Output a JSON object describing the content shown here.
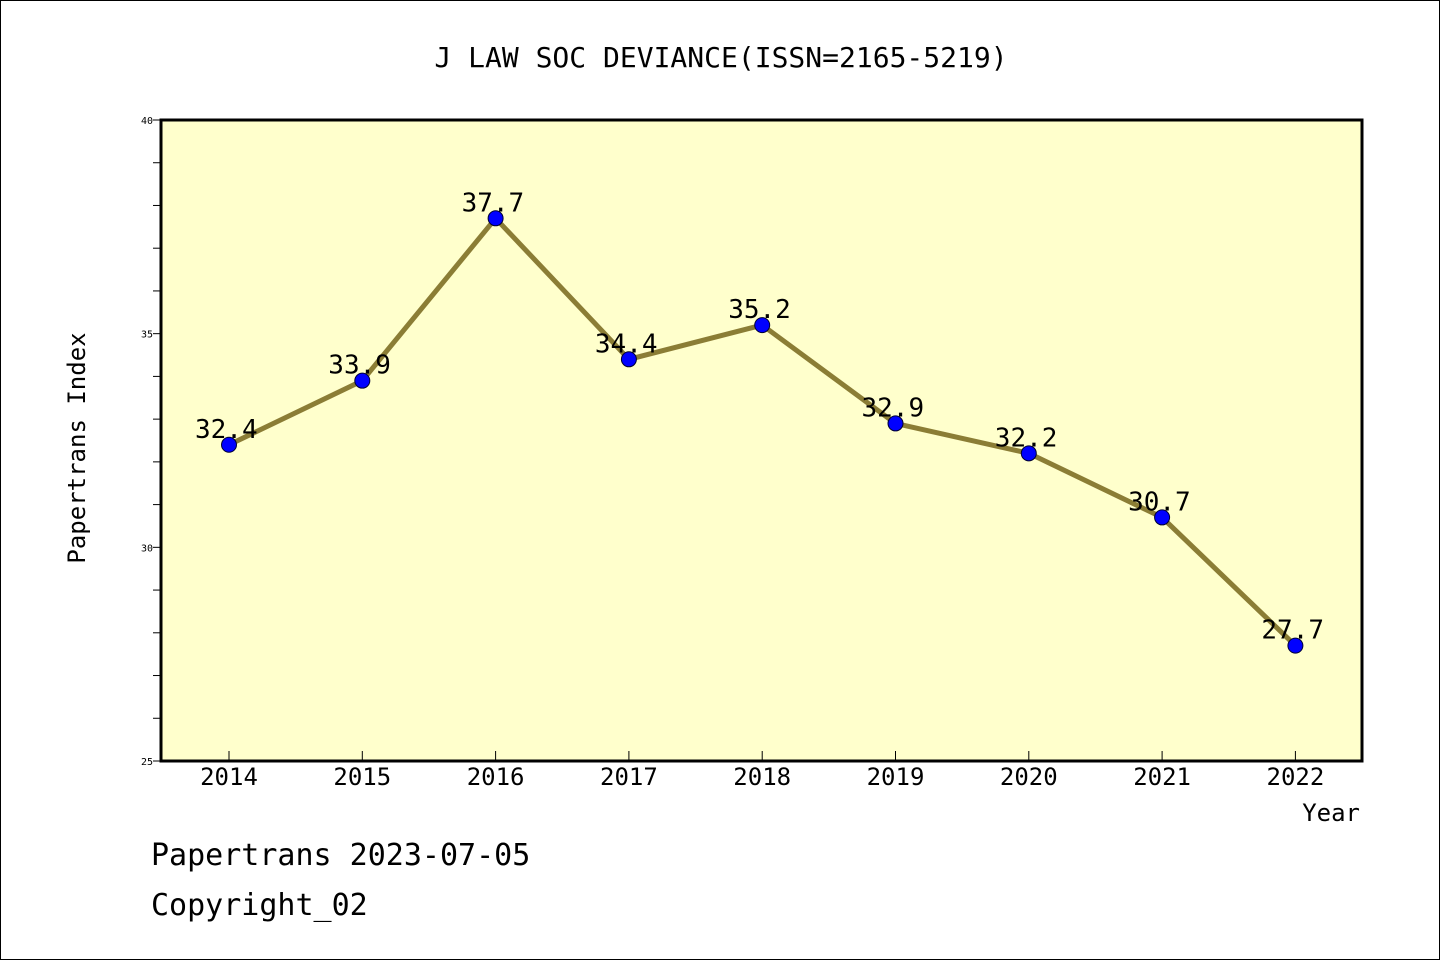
{
  "chart_data": {
    "type": "line",
    "title": "J LAW SOC DEVIANCE(ISSN=2165-5219)",
    "xlabel": "Year",
    "ylabel": "Papertrans Index",
    "categories": [
      "2014",
      "2015",
      "2016",
      "2017",
      "2018",
      "2019",
      "2020",
      "2021",
      "2022"
    ],
    "series": [
      {
        "values": [
          32.4,
          33.9,
          37.7,
          34.4,
          35.2,
          32.9,
          32.2,
          30.7,
          27.7
        ]
      }
    ],
    "data_labels": [
      "32.4",
      "33.9",
      "37.7",
      "34.4",
      "35.2",
      "32.9",
      "32.2",
      "30.7",
      "27.7"
    ],
    "ylim": [
      25,
      40
    ],
    "yticks": [
      25,
      30,
      35,
      40
    ],
    "ytick_labels": [
      "25",
      "30",
      "35",
      "40"
    ],
    "grid": false,
    "colors": {
      "plot_background": "#ffffcc",
      "line": "#8b7d35",
      "marker": "#0000ff"
    }
  },
  "footer": {
    "line1": "Papertrans 2023-07-05",
    "line2": "Copyright_02"
  }
}
